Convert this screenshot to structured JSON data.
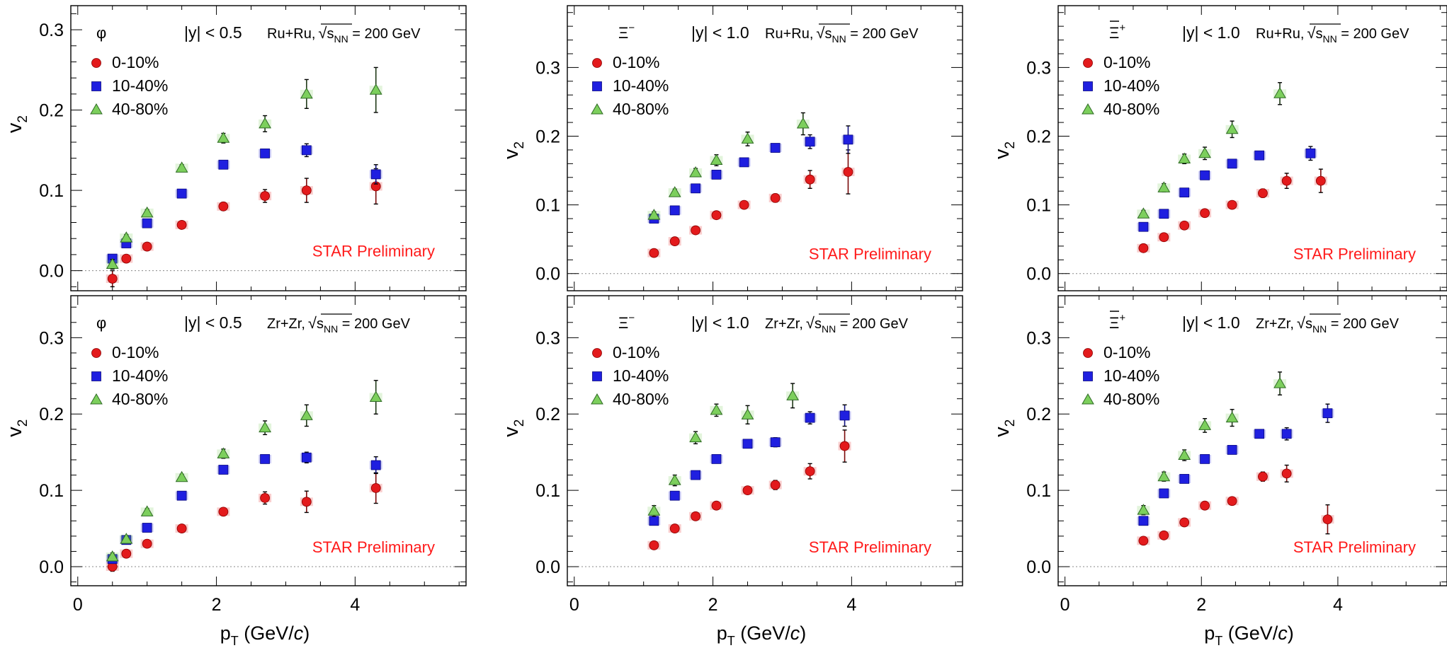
{
  "colors": {
    "cent_0_10": "#e31a1c",
    "cent_10_40": "#1f1fe0",
    "cent_40_80": "#7ccf5c",
    "preliminary": "#ff1a1a",
    "zero_line": "#888888"
  },
  "xlabel_main": "p",
  "xlabel_sub": "T",
  "xlabel_rest": " (GeV/",
  "xlabel_c": "c",
  "xlabel_close": ")",
  "ylabel_main": "v",
  "ylabel_sub": "2",
  "label_sqrt_prefix": "√",
  "label_s": "s",
  "label_nn": "NN",
  "label_energy": " = 200 GeV",
  "chart_data": [
    {
      "type": "scatter",
      "particle": "φ",
      "rapidity": "|y| < 0.5",
      "system": "Ru+Ru,",
      "watermark": "STAR Preliminary",
      "xlim": [
        -0.1,
        5.6
      ],
      "ylim": [
        -0.025,
        0.33
      ],
      "xticks": [
        0,
        2,
        4
      ],
      "yticks": [
        0.0,
        0.1,
        0.2,
        0.3
      ],
      "ytick_labels": [
        "0.0",
        "0.1",
        "0.2",
        "0.3"
      ],
      "series": [
        {
          "name": "0-10%",
          "marker": "circle",
          "x": [
            0.5,
            0.7,
            1.0,
            1.5,
            2.1,
            2.7,
            3.3,
            4.3
          ],
          "y": [
            -0.01,
            0.015,
            0.03,
            0.057,
            0.08,
            0.093,
            0.1,
            0.105
          ],
          "err": [
            0.01,
            0.004,
            0.004,
            0.003,
            0.005,
            0.008,
            0.015,
            0.022
          ]
        },
        {
          "name": "10-40%",
          "marker": "square",
          "x": [
            0.5,
            0.7,
            1.0,
            1.5,
            2.1,
            2.7,
            3.3,
            4.3
          ],
          "y": [
            0.015,
            0.034,
            0.059,
            0.096,
            0.132,
            0.146,
            0.15,
            0.12
          ],
          "err": [
            0.004,
            0.003,
            0.003,
            0.003,
            0.004,
            0.005,
            0.008,
            0.012
          ]
        },
        {
          "name": "40-80%",
          "marker": "triangle",
          "x": [
            0.5,
            0.7,
            1.0,
            1.5,
            2.1,
            2.7,
            3.3,
            4.3
          ],
          "y": [
            0.008,
            0.041,
            0.072,
            0.128,
            0.165,
            0.183,
            0.22,
            0.225
          ],
          "err": [
            0.006,
            0.004,
            0.004,
            0.004,
            0.006,
            0.01,
            0.018,
            0.028
          ]
        }
      ]
    },
    {
      "type": "scatter",
      "particle": "Ξ",
      "particle_sup": "−",
      "rapidity": "|y| < 1.0",
      "system": "Ru+Ru,",
      "watermark": "STAR Preliminary",
      "xlim": [
        -0.1,
        5.6
      ],
      "ylim": [
        -0.025,
        0.39
      ],
      "xticks": [
        0,
        2,
        4
      ],
      "yticks": [
        0.0,
        0.1,
        0.2,
        0.3
      ],
      "ytick_labels": [
        "0.0",
        "0.1",
        "0.2",
        "0.3"
      ],
      "series": [
        {
          "name": "0-10%",
          "marker": "circle",
          "x": [
            1.15,
            1.45,
            1.75,
            2.05,
            2.45,
            2.9,
            3.4,
            3.95
          ],
          "y": [
            0.03,
            0.047,
            0.063,
            0.085,
            0.1,
            0.11,
            0.137,
            0.148
          ],
          "err": [
            0.003,
            0.003,
            0.003,
            0.003,
            0.004,
            0.006,
            0.013,
            0.032
          ]
        },
        {
          "name": "10-40%",
          "marker": "square",
          "x": [
            1.15,
            1.45,
            1.75,
            2.05,
            2.45,
            2.9,
            3.4,
            3.95
          ],
          "y": [
            0.08,
            0.092,
            0.124,
            0.144,
            0.162,
            0.183,
            0.192,
            0.195
          ],
          "err": [
            0.004,
            0.003,
            0.003,
            0.003,
            0.004,
            0.005,
            0.01,
            0.02
          ]
        },
        {
          "name": "40-80%",
          "marker": "triangle",
          "x": [
            1.15,
            1.45,
            1.75,
            2.05,
            2.5,
            3.3
          ],
          "y": [
            0.085,
            0.118,
            0.147,
            0.165,
            0.196,
            0.218
          ],
          "err": [
            0.005,
            0.005,
            0.006,
            0.008,
            0.01,
            0.016
          ]
        }
      ]
    },
    {
      "type": "scatter",
      "particle": "Ξ",
      "particle_sup": "+",
      "bar": true,
      "rapidity": "|y| < 1.0",
      "system": "Ru+Ru,",
      "watermark": "STAR Preliminary",
      "xlim": [
        -0.1,
        5.6
      ],
      "ylim": [
        -0.025,
        0.39
      ],
      "xticks": [
        0,
        2,
        4
      ],
      "yticks": [
        0.0,
        0.1,
        0.2,
        0.3
      ],
      "ytick_labels": [
        "0.0",
        "0.1",
        "0.2",
        "0.3"
      ],
      "series": [
        {
          "name": "0-10%",
          "marker": "circle",
          "x": [
            1.15,
            1.45,
            1.75,
            2.05,
            2.45,
            2.9,
            3.25,
            3.75
          ],
          "y": [
            0.037,
            0.053,
            0.07,
            0.088,
            0.1,
            0.117,
            0.135,
            0.135
          ],
          "err": [
            0.003,
            0.003,
            0.003,
            0.003,
            0.004,
            0.006,
            0.011,
            0.017
          ]
        },
        {
          "name": "10-40%",
          "marker": "square",
          "x": [
            1.15,
            1.45,
            1.75,
            2.05,
            2.45,
            2.85,
            3.6
          ],
          "y": [
            0.068,
            0.087,
            0.118,
            0.143,
            0.16,
            0.172,
            0.175
          ],
          "err": [
            0.004,
            0.003,
            0.003,
            0.004,
            0.004,
            0.006,
            0.01
          ]
        },
        {
          "name": "40-80%",
          "marker": "triangle",
          "x": [
            1.15,
            1.45,
            1.75,
            2.05,
            2.45,
            3.15
          ],
          "y": [
            0.087,
            0.125,
            0.167,
            0.175,
            0.21,
            0.262
          ],
          "err": [
            0.005,
            0.006,
            0.007,
            0.009,
            0.012,
            0.016
          ]
        }
      ]
    },
    {
      "type": "scatter",
      "particle": "φ",
      "rapidity": "|y| < 0.5",
      "system": "Zr+Zr,",
      "watermark": "STAR Preliminary",
      "xlim": [
        -0.1,
        5.6
      ],
      "ylim": [
        -0.025,
        0.355
      ],
      "xticks": [
        0,
        2,
        4
      ],
      "yticks": [
        0.0,
        0.1,
        0.2,
        0.3
      ],
      "ytick_labels": [
        "0.0",
        "0.1",
        "0.2",
        "0.3"
      ],
      "series": [
        {
          "name": "0-10%",
          "marker": "circle",
          "x": [
            0.5,
            0.7,
            1.0,
            1.5,
            2.1,
            2.7,
            3.3,
            4.3
          ],
          "y": [
            0.0,
            0.017,
            0.03,
            0.05,
            0.072,
            0.09,
            0.085,
            0.103
          ],
          "err": [
            0.006,
            0.004,
            0.004,
            0.003,
            0.004,
            0.008,
            0.014,
            0.02
          ]
        },
        {
          "name": "10-40%",
          "marker": "square",
          "x": [
            0.5,
            0.7,
            1.0,
            1.5,
            2.1,
            2.7,
            3.3,
            4.3
          ],
          "y": [
            0.01,
            0.035,
            0.051,
            0.093,
            0.127,
            0.141,
            0.143,
            0.133
          ],
          "err": [
            0.004,
            0.003,
            0.003,
            0.003,
            0.004,
            0.005,
            0.007,
            0.011
          ]
        },
        {
          "name": "40-80%",
          "marker": "triangle",
          "x": [
            0.5,
            0.7,
            1.0,
            1.5,
            2.1,
            2.7,
            3.3,
            4.3
          ],
          "y": [
            0.013,
            0.036,
            0.072,
            0.117,
            0.148,
            0.182,
            0.198,
            0.222
          ],
          "err": [
            0.005,
            0.004,
            0.004,
            0.004,
            0.006,
            0.009,
            0.014,
            0.022
          ]
        }
      ]
    },
    {
      "type": "scatter",
      "particle": "Ξ",
      "particle_sup": "−",
      "rapidity": "|y| < 1.0",
      "system": "Zr+Zr,",
      "watermark": "STAR Preliminary",
      "xlim": [
        -0.1,
        5.6
      ],
      "ylim": [
        -0.025,
        0.355
      ],
      "xticks": [
        0,
        2,
        4
      ],
      "yticks": [
        0.0,
        0.1,
        0.2,
        0.3
      ],
      "ytick_labels": [
        "0.0",
        "0.1",
        "0.2",
        "0.3"
      ],
      "series": [
        {
          "name": "0-10%",
          "marker": "circle",
          "x": [
            1.15,
            1.45,
            1.75,
            2.05,
            2.5,
            2.9,
            3.4,
            3.9
          ],
          "y": [
            0.028,
            0.05,
            0.066,
            0.08,
            0.1,
            0.107,
            0.125,
            0.158
          ],
          "err": [
            0.003,
            0.003,
            0.003,
            0.003,
            0.004,
            0.006,
            0.01,
            0.021
          ]
        },
        {
          "name": "10-40%",
          "marker": "square",
          "x": [
            1.15,
            1.45,
            1.75,
            2.05,
            2.5,
            2.9,
            3.4,
            3.9
          ],
          "y": [
            0.06,
            0.093,
            0.12,
            0.141,
            0.161,
            0.163,
            0.195,
            0.198
          ],
          "err": [
            0.004,
            0.003,
            0.003,
            0.004,
            0.004,
            0.006,
            0.008,
            0.014
          ]
        },
        {
          "name": "40-80%",
          "marker": "triangle",
          "x": [
            1.15,
            1.45,
            1.75,
            2.05,
            2.5,
            3.15
          ],
          "y": [
            0.073,
            0.113,
            0.169,
            0.205,
            0.199,
            0.224
          ],
          "err": [
            0.007,
            0.007,
            0.008,
            0.008,
            0.012,
            0.016
          ]
        }
      ]
    },
    {
      "type": "scatter",
      "particle": "Ξ",
      "particle_sup": "+",
      "bar": true,
      "rapidity": "|y| < 1.0",
      "system": "Zr+Zr,",
      "watermark": "STAR Preliminary",
      "xlim": [
        -0.1,
        5.6
      ],
      "ylim": [
        -0.025,
        0.355
      ],
      "xticks": [
        0,
        2,
        4
      ],
      "yticks": [
        0.0,
        0.1,
        0.2,
        0.3
      ],
      "ytick_labels": [
        "0.0",
        "0.1",
        "0.2",
        "0.3"
      ],
      "series": [
        {
          "name": "0-10%",
          "marker": "circle",
          "x": [
            1.15,
            1.45,
            1.75,
            2.05,
            2.45,
            2.9,
            3.25,
            3.85
          ],
          "y": [
            0.034,
            0.041,
            0.058,
            0.08,
            0.086,
            0.118,
            0.122,
            0.062
          ],
          "err": [
            0.003,
            0.003,
            0.003,
            0.003,
            0.004,
            0.006,
            0.011,
            0.019
          ]
        },
        {
          "name": "10-40%",
          "marker": "square",
          "x": [
            1.15,
            1.45,
            1.75,
            2.05,
            2.45,
            2.85,
            3.25,
            3.85
          ],
          "y": [
            0.06,
            0.096,
            0.115,
            0.141,
            0.153,
            0.174,
            0.174,
            0.201
          ],
          "err": [
            0.004,
            0.003,
            0.004,
            0.004,
            0.004,
            0.005,
            0.008,
            0.012
          ]
        },
        {
          "name": "40-80%",
          "marker": "triangle",
          "x": [
            1.15,
            1.45,
            1.75,
            2.05,
            2.45,
            3.15
          ],
          "y": [
            0.074,
            0.118,
            0.146,
            0.185,
            0.195,
            0.24
          ],
          "err": [
            0.006,
            0.006,
            0.007,
            0.009,
            0.011,
            0.015
          ]
        }
      ]
    }
  ]
}
